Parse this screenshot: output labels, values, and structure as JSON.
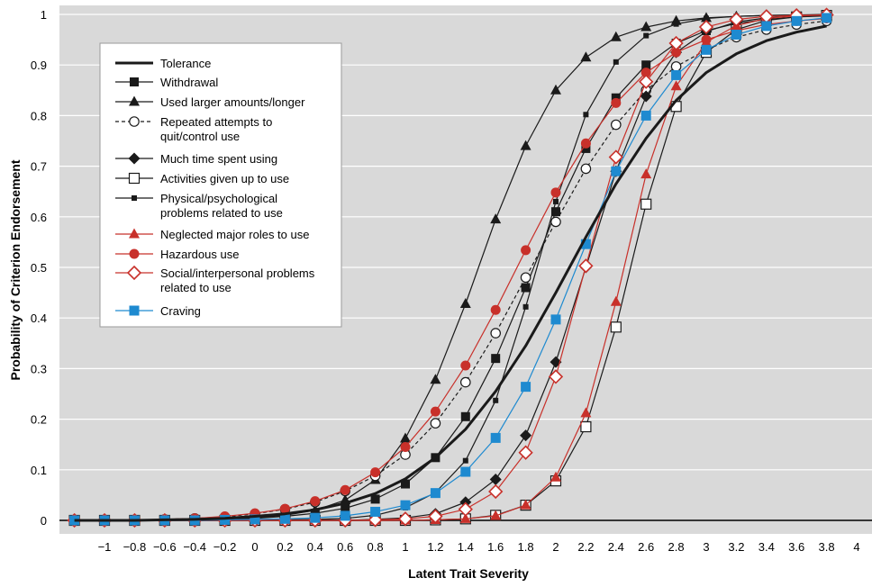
{
  "chart_data": {
    "type": "line",
    "title": "",
    "xlabel": "Latent Trait Severity",
    "ylabel": "Probability of Criterion Endorsement",
    "xlim": [
      -1.2,
      4
    ],
    "ylim": [
      0,
      1
    ],
    "x_ticks": [
      -1,
      -0.8,
      -0.6,
      -0.4,
      -0.2,
      0,
      0.2,
      0.4,
      0.6,
      0.8,
      1,
      1.2,
      1.4,
      1.6,
      1.8,
      2,
      2.2,
      2.4,
      2.6,
      2.8,
      3,
      3.2,
      3.4,
      3.6,
      3.8,
      4
    ],
    "x_tick_labels": [
      "−1",
      "−0.8",
      "−0.6",
      "−0.4",
      "−0.2",
      "0",
      "0.2",
      "0.4",
      "0.6",
      "0.8",
      "1",
      "1.2",
      "1.4",
      "1.6",
      "1.8",
      "2",
      "2.2",
      "2.4",
      "2.6",
      "2.8",
      "3",
      "3.2",
      "3.4",
      "3.6",
      "3.8",
      "4"
    ],
    "y_ticks": [
      0,
      0.1,
      0.2,
      0.3,
      0.4,
      0.5,
      0.6,
      0.7,
      0.8,
      0.9,
      1
    ],
    "y_tick_labels": [
      "0",
      "0.1",
      "0.2",
      "0.3",
      "0.4",
      "0.5",
      "0.6",
      "0.7",
      "0.8",
      "0.9",
      "1"
    ],
    "grid": "horizontal",
    "background": "#d9d9d9",
    "legend_position": "top-left",
    "x": [
      -1.2,
      -1,
      -0.8,
      -0.6,
      -0.4,
      -0.2,
      0,
      0.2,
      0.4,
      0.6,
      0.8,
      1,
      1.2,
      1.4,
      1.6,
      1.8,
      2,
      2.2,
      2.4,
      2.6,
      2.8,
      3,
      3.2,
      3.4,
      3.6,
      3.8
    ],
    "series": [
      {
        "name": "Tolerance",
        "color": "#1a1a1a",
        "line_width": 3,
        "dash": "",
        "marker": "none",
        "values": [
          0,
          0,
          0,
          0.001,
          0.002,
          0.004,
          0.008,
          0.013,
          0.021,
          0.034,
          0.053,
          0.082,
          0.124,
          0.18,
          0.255,
          0.345,
          0.45,
          0.56,
          0.665,
          0.755,
          0.83,
          0.885,
          0.922,
          0.948,
          0.965,
          0.977
        ]
      },
      {
        "name": "Withdrawal",
        "color": "#1a1a1a",
        "line_width": 1.2,
        "dash": "",
        "marker": "square-filled",
        "values": [
          0,
          0,
          0,
          0,
          0.001,
          0.002,
          0.004,
          0.008,
          0.014,
          0.024,
          0.042,
          0.072,
          0.124,
          0.205,
          0.32,
          0.46,
          0.61,
          0.735,
          0.835,
          0.9,
          0.943,
          0.968,
          0.982,
          0.99,
          0.995,
          0.997
        ]
      },
      {
        "name": "Used larger amounts/longer",
        "color": "#1a1a1a",
        "line_width": 1.2,
        "dash": "",
        "marker": "triangle-filled",
        "values": [
          0,
          0,
          0,
          0,
          0.001,
          0.002,
          0.005,
          0.01,
          0.02,
          0.04,
          0.08,
          0.162,
          0.278,
          0.428,
          0.595,
          0.74,
          0.85,
          0.915,
          0.955,
          0.975,
          0.987,
          0.993,
          0.996,
          0.998,
          0.999,
          0.999
        ]
      },
      {
        "name": "Repeated attempts to quit/control use",
        "color": "#1a1a1a",
        "line_width": 1.2,
        "dash": "4,3",
        "marker": "circle-open",
        "values": [
          0,
          0,
          0.001,
          0.002,
          0.004,
          0.007,
          0.013,
          0.022,
          0.036,
          0.058,
          0.088,
          0.13,
          0.192,
          0.273,
          0.37,
          0.48,
          0.59,
          0.695,
          0.782,
          0.85,
          0.897,
          0.93,
          0.955,
          0.97,
          0.98,
          0.987
        ]
      },
      {
        "name": "Much time spent using",
        "color": "#1a1a1a",
        "line_width": 1.2,
        "dash": "",
        "marker": "diamond-filled",
        "values": [
          0,
          0,
          0,
          0,
          0,
          0,
          0,
          0,
          0,
          0,
          0.002,
          0.005,
          0.013,
          0.036,
          0.081,
          0.168,
          0.313,
          0.5,
          0.69,
          0.838,
          0.925,
          0.966,
          0.985,
          0.993,
          0.997,
          0.999
        ]
      },
      {
        "name": "Activities given up to use",
        "color": "#1a1a1a",
        "line_width": 1.2,
        "dash": "",
        "marker": "square-open",
        "values": [
          0,
          0,
          0,
          0,
          0,
          0,
          0,
          0,
          0,
          0,
          0,
          0,
          0.001,
          0.003,
          0.01,
          0.03,
          0.078,
          0.185,
          0.382,
          0.625,
          0.818,
          0.925,
          0.97,
          0.988,
          0.995,
          0.998
        ]
      },
      {
        "name": "Physical/psychological problems related to use",
        "color": "#1a1a1a",
        "line_width": 1.2,
        "dash": "",
        "marker": "square-small",
        "values": [
          0,
          0,
          0,
          0,
          0,
          0,
          0,
          0.001,
          0.002,
          0.004,
          0.01,
          0.025,
          0.055,
          0.118,
          0.237,
          0.422,
          0.63,
          0.802,
          0.906,
          0.958,
          0.981,
          0.992,
          0.996,
          0.998,
          0.999,
          1
        ]
      },
      {
        "name": "Neglected major roles to use",
        "color": "#c8302a",
        "line_width": 1.2,
        "dash": "",
        "marker": "triangle-red",
        "values": [
          0,
          0,
          0,
          0,
          0,
          0,
          0,
          0,
          0,
          0,
          0,
          0,
          0.001,
          0.003,
          0.009,
          0.03,
          0.085,
          0.212,
          0.432,
          0.684,
          0.858,
          0.945,
          0.978,
          0.992,
          0.997,
          0.999
        ]
      },
      {
        "name": "Hazardous use",
        "color": "#c8302a",
        "line_width": 1.2,
        "dash": "",
        "marker": "circle-red",
        "values": [
          0,
          0,
          0.001,
          0.002,
          0.004,
          0.008,
          0.014,
          0.023,
          0.038,
          0.06,
          0.095,
          0.145,
          0.215,
          0.306,
          0.416,
          0.534,
          0.648,
          0.745,
          0.825,
          0.885,
          0.925,
          0.95,
          0.968,
          0.98,
          0.987,
          0.992
        ]
      },
      {
        "name": "Social/interpersonal problems related to use",
        "color": "#c8302a",
        "line_width": 1.2,
        "dash": "",
        "marker": "diamond-open-red",
        "values": [
          0,
          0,
          0,
          0,
          0,
          0,
          0,
          0,
          0,
          0,
          0.001,
          0.003,
          0.008,
          0.022,
          0.057,
          0.134,
          0.284,
          0.503,
          0.718,
          0.867,
          0.943,
          0.975,
          0.99,
          0.996,
          0.998,
          0.999
        ]
      },
      {
        "name": "Craving",
        "color": "#1e8ad0",
        "line_width": 1.2,
        "dash": "",
        "marker": "square-blue",
        "values": [
          0,
          0,
          0,
          0,
          0,
          0.001,
          0.002,
          0.003,
          0.005,
          0.009,
          0.017,
          0.03,
          0.054,
          0.096,
          0.163,
          0.264,
          0.397,
          0.546,
          0.69,
          0.8,
          0.88,
          0.93,
          0.96,
          0.977,
          0.987,
          0.993
        ]
      }
    ],
    "legend_labels": [
      [
        "Tolerance"
      ],
      [
        "Withdrawal"
      ],
      [
        "Used larger amounts/longer"
      ],
      [
        "Repeated attempts to",
        "quit/control use"
      ],
      [
        "Much time spent using"
      ],
      [
        "Activities given up to use"
      ],
      [
        "Physical/psychological",
        "problems related to use"
      ],
      [
        "Neglected major roles to use"
      ],
      [
        "Hazardous use"
      ],
      [
        "Social/interpersonal problems",
        "related to use"
      ],
      [
        "Craving"
      ]
    ]
  }
}
